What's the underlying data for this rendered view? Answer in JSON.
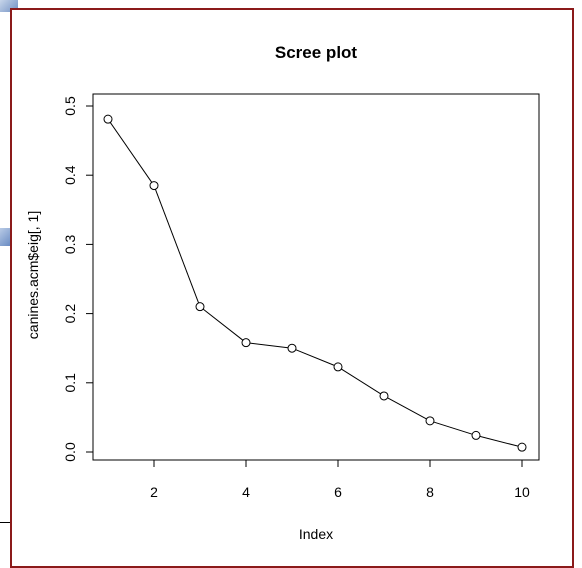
{
  "chart_data": {
    "type": "line",
    "title": "Scree plot",
    "xlabel": "Index",
    "ylabel": "canines.acm$eig[, 1]",
    "x": [
      1,
      2,
      3,
      4,
      5,
      6,
      7,
      8,
      9,
      10
    ],
    "values": [
      0.481,
      0.385,
      0.21,
      0.158,
      0.15,
      0.123,
      0.081,
      0.045,
      0.024,
      0.007
    ],
    "xlim": [
      1,
      10
    ],
    "ylim": [
      0.0,
      0.5
    ],
    "xticks": [
      "2",
      "4",
      "6",
      "8",
      "10"
    ],
    "yticks": [
      "0.0",
      "0.1",
      "0.2",
      "0.3",
      "0.4",
      "0.5"
    ],
    "marker": "open-circle",
    "grid": false,
    "colors": {
      "line": "#000000",
      "frame": "#8b1a1a"
    }
  }
}
